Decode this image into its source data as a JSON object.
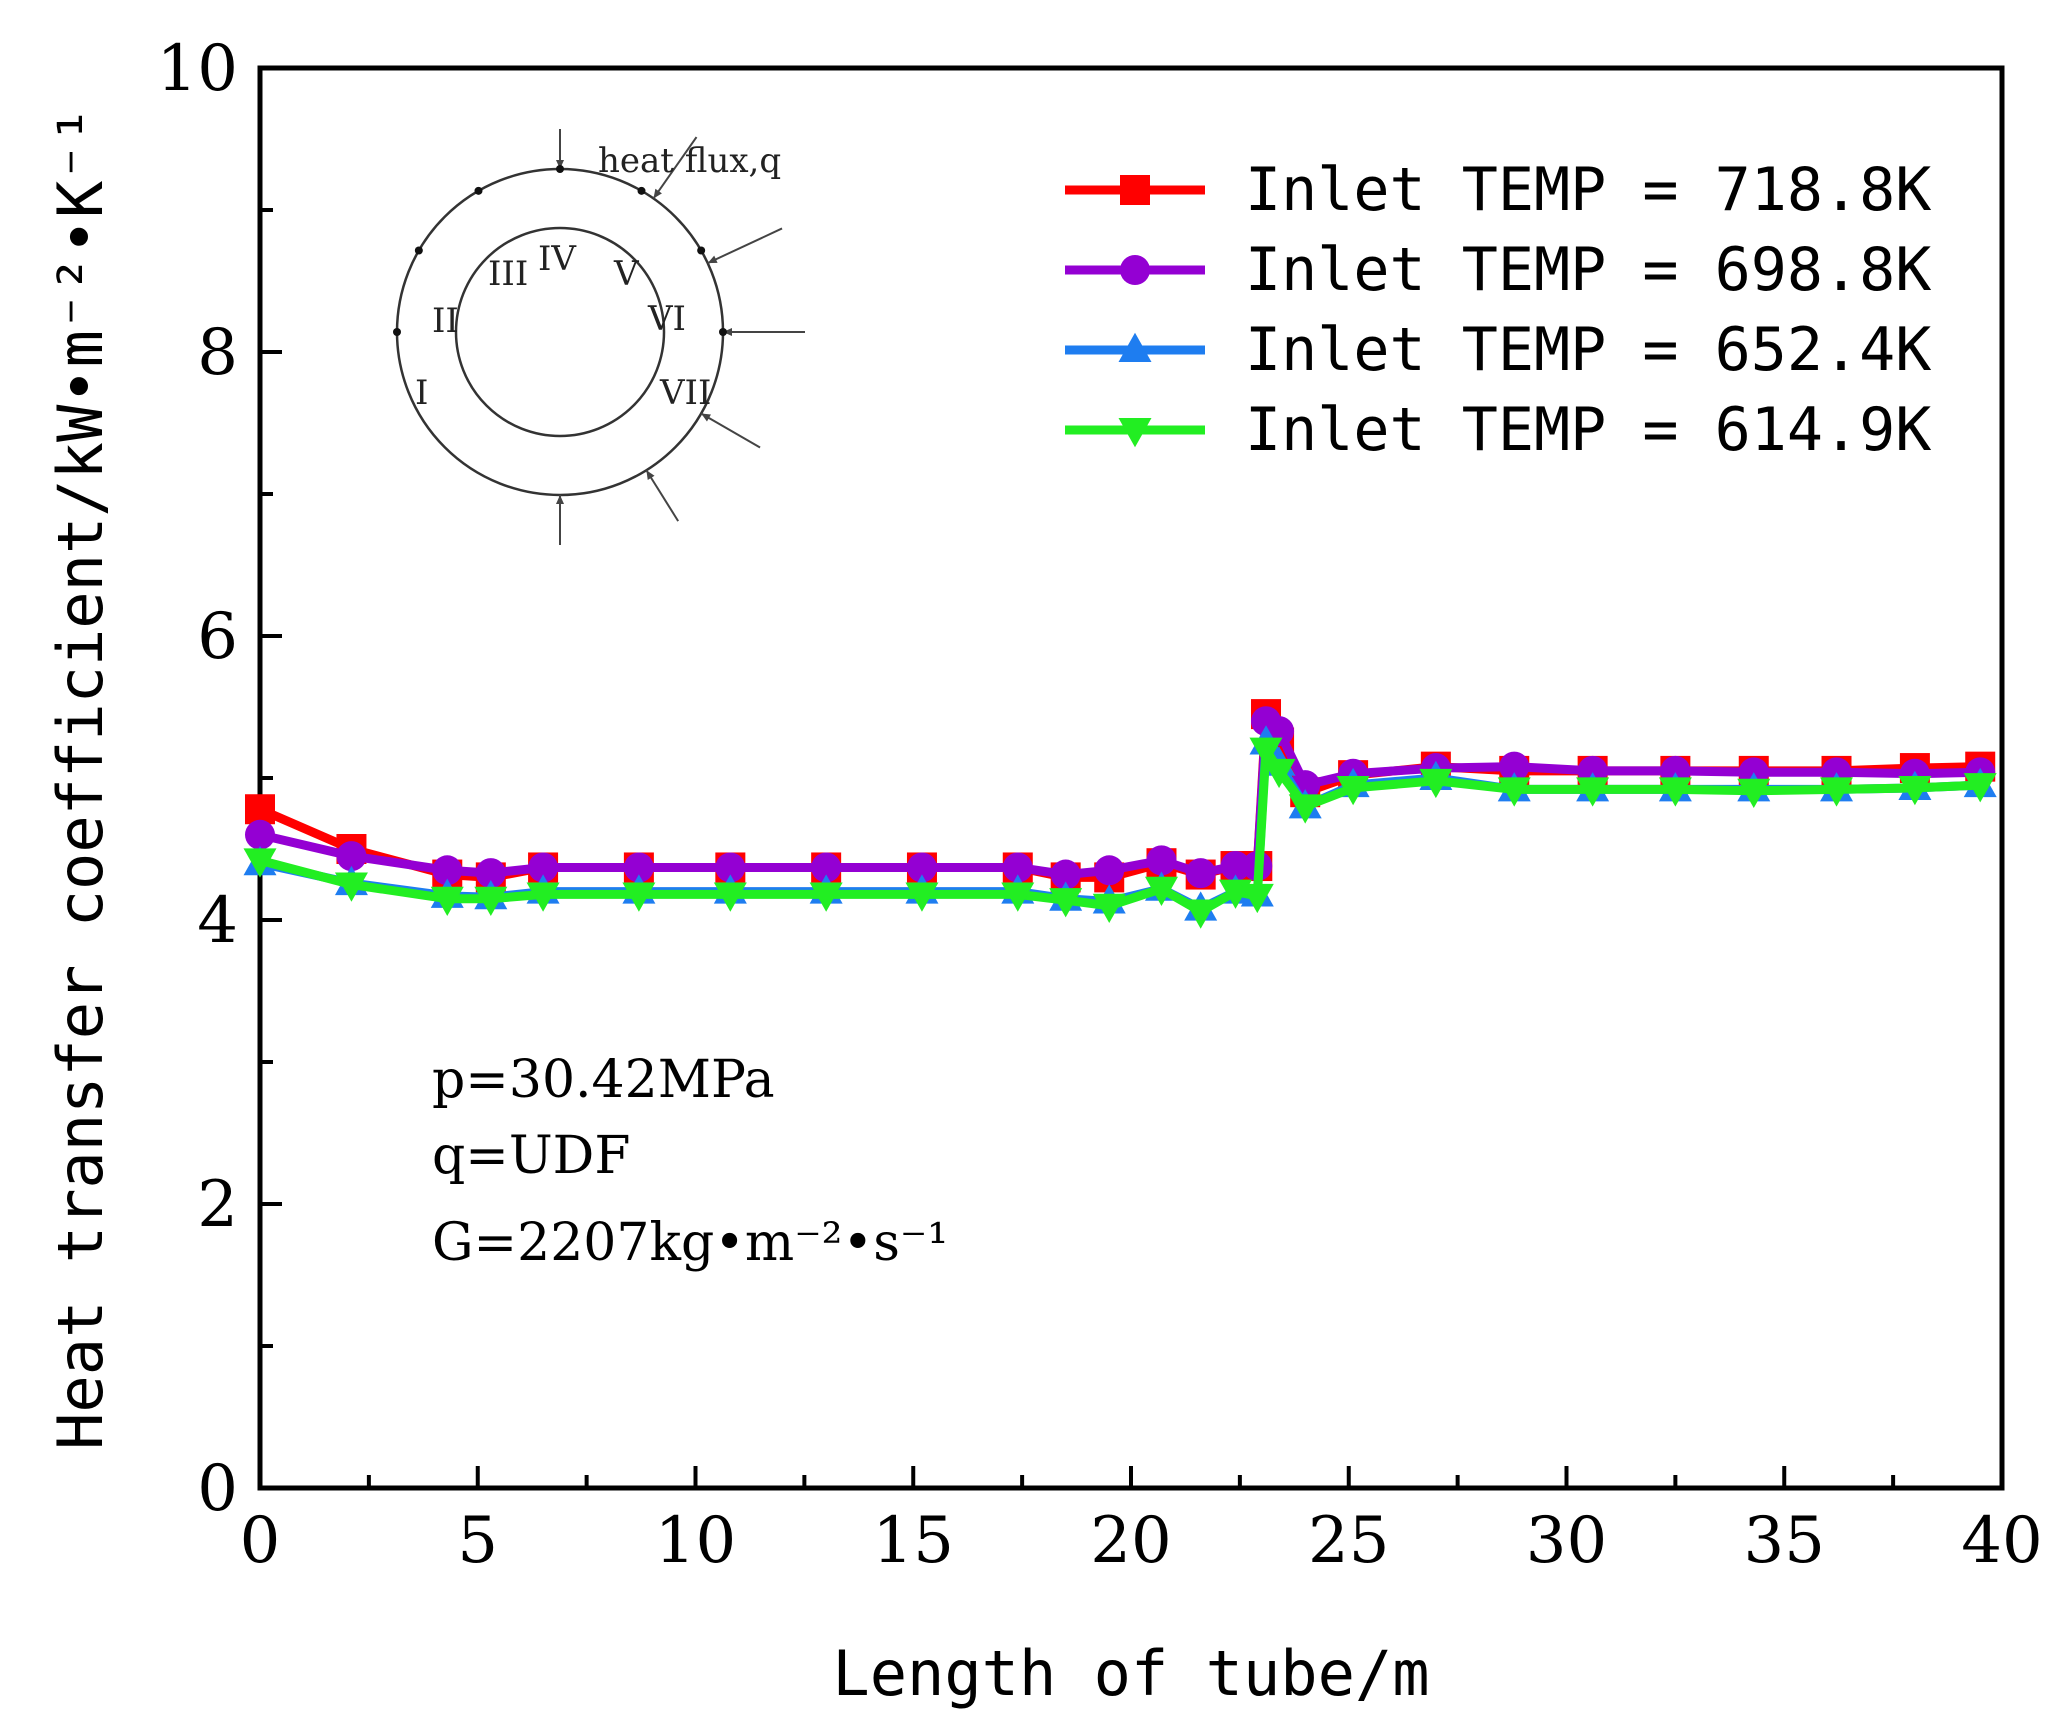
{
  "chart_data": {
    "type": "line",
    "xlabel": "Length of tube/m",
    "ylabel": "Heat transfer coefficient/kW•m⁻²•K⁻¹",
    "xlim": [
      0,
      40
    ],
    "ylim": [
      0,
      10
    ],
    "xticks": [
      "0",
      "5",
      "10",
      "15",
      "20",
      "25",
      "30",
      "35",
      "40"
    ],
    "yticks": [
      "0",
      "2",
      "4",
      "6",
      "8",
      "10"
    ],
    "conditions": [
      "p=30.42MPa",
      "q=UDF",
      "G=2207kg•m⁻²•s⁻¹"
    ],
    "inset": {
      "title": "heat flux,q",
      "positions": [
        "I",
        "II",
        "III",
        "IV",
        "V",
        "VI",
        "VII"
      ]
    },
    "series": [
      {
        "name": "Inlet TEMP = 718.8K",
        "color": "#ff0000",
        "marker": "square",
        "x": [
          0,
          2.1,
          4.3,
          5.3,
          6.5,
          8.7,
          10.8,
          13.0,
          15.2,
          17.4,
          18.5,
          19.5,
          20.7,
          21.6,
          22.4,
          22.9,
          23.1,
          23.4,
          24.0,
          25.1,
          27.0,
          28.8,
          30.6,
          32.5,
          34.3,
          36.2,
          38.0,
          39.5
        ],
        "y": [
          4.78,
          4.5,
          4.32,
          4.3,
          4.37,
          4.37,
          4.37,
          4.37,
          4.37,
          4.37,
          4.3,
          4.3,
          4.4,
          4.32,
          4.38,
          4.38,
          5.45,
          5.25,
          4.9,
          5.02,
          5.08,
          5.05,
          5.05,
          5.05,
          5.05,
          5.05,
          5.07,
          5.08
        ]
      },
      {
        "name": "Inlet TEMP = 698.8K",
        "color": "#9400d3",
        "marker": "circle",
        "x": [
          0,
          2.1,
          4.3,
          5.3,
          6.5,
          8.7,
          10.8,
          13.0,
          15.2,
          17.4,
          18.5,
          19.5,
          20.7,
          21.6,
          22.4,
          22.9,
          23.1,
          23.4,
          24.0,
          25.1,
          27.0,
          28.8,
          30.6,
          32.5,
          34.3,
          36.2,
          38.0,
          39.5
        ],
        "y": [
          4.6,
          4.45,
          4.35,
          4.33,
          4.37,
          4.37,
          4.37,
          4.37,
          4.37,
          4.37,
          4.32,
          4.35,
          4.42,
          4.33,
          4.38,
          4.38,
          5.4,
          5.33,
          4.95,
          5.03,
          5.07,
          5.08,
          5.05,
          5.05,
          5.04,
          5.04,
          5.03,
          5.04
        ]
      },
      {
        "name": "Inlet TEMP = 652.4K",
        "color": "#1e7df0",
        "marker": "triangle-up",
        "x": [
          0,
          2.1,
          4.3,
          5.3,
          6.5,
          8.7,
          10.8,
          13.0,
          15.2,
          17.4,
          18.5,
          19.5,
          20.7,
          21.6,
          22.4,
          22.9,
          23.1,
          23.4,
          24.0,
          25.1,
          27.0,
          28.8,
          30.6,
          32.5,
          34.3,
          36.2,
          38.0,
          39.5
        ],
        "y": [
          4.4,
          4.26,
          4.17,
          4.16,
          4.2,
          4.2,
          4.2,
          4.2,
          4.2,
          4.2,
          4.15,
          4.13,
          4.22,
          4.08,
          4.2,
          4.18,
          5.25,
          5.1,
          4.8,
          4.95,
          5.0,
          4.92,
          4.92,
          4.92,
          4.92,
          4.92,
          4.93,
          4.95
        ]
      },
      {
        "name": "Inlet TEMP = 614.9K",
        "color": "#22ee22",
        "marker": "triangle-down",
        "x": [
          0,
          2.1,
          4.3,
          5.3,
          6.5,
          8.7,
          10.8,
          13.0,
          15.2,
          17.4,
          18.5,
          19.5,
          20.7,
          21.6,
          22.4,
          22.9,
          23.1,
          23.4,
          24.0,
          25.1,
          27.0,
          28.8,
          30.6,
          32.5,
          34.3,
          36.2,
          38.0,
          39.5
        ],
        "y": [
          4.42,
          4.25,
          4.15,
          4.15,
          4.18,
          4.18,
          4.18,
          4.18,
          4.18,
          4.18,
          4.14,
          4.1,
          4.22,
          4.06,
          4.2,
          4.17,
          5.2,
          5.05,
          4.8,
          4.93,
          4.98,
          4.92,
          4.92,
          4.92,
          4.91,
          4.92,
          4.93,
          4.95
        ]
      }
    ]
  }
}
